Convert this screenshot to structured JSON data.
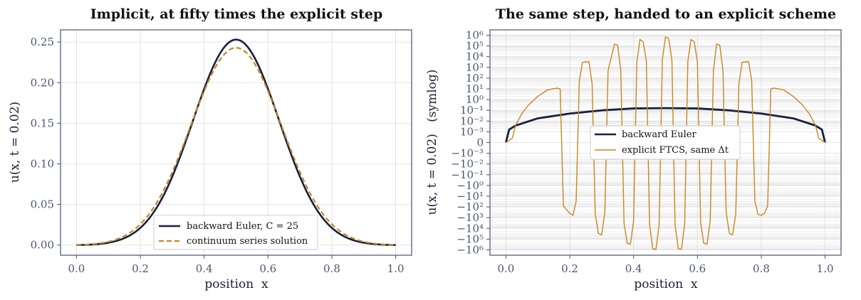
{
  "chart_data": [
    {
      "type": "line",
      "title": "Implicit, at fifty times the explicit step",
      "xlabel": "position  x",
      "ylabel": "u(x, t = 0.02)",
      "xlim": [
        -0.05,
        1.05
      ],
      "ylim": [
        -0.0125,
        0.265
      ],
      "xticks": [
        "0.0",
        "0.2",
        "0.4",
        "0.6",
        "0.8",
        "1.0"
      ],
      "yticks": [
        "0.00",
        "0.05",
        "0.10",
        "0.15",
        "0.20",
        "0.25"
      ],
      "grid": true,
      "legend_position": "bottom-center",
      "series": [
        {
          "name": "backward Euler, C = 25",
          "color": "#172040",
          "style": "solid",
          "model": "gaussian",
          "peak": 0.253,
          "center": 0.5,
          "sigma": 0.135
        },
        {
          "name": "continuum series solution",
          "color": "#c8861e",
          "style": "dashed",
          "model": "gaussian",
          "peak": 0.243,
          "center": 0.5,
          "sigma": 0.142
        }
      ]
    },
    {
      "type": "line",
      "title": "The same step, handed to an explicit scheme",
      "xlabel": "position  x",
      "ylabel": "u(x, t = 0.02)   (symlog)",
      "xlim": [
        -0.05,
        1.05
      ],
      "yscale": "symlog",
      "ylim": [
        -1000000,
        1000000
      ],
      "xticks": [
        "0.0",
        "0.2",
        "0.4",
        "0.6",
        "0.8",
        "1.0"
      ],
      "yticks": [
        "−10⁶",
        "−10⁵",
        "−10⁴",
        "−10³",
        "−10²",
        "−10¹",
        "−10⁰",
        "−10⁻¹",
        "−10⁻²",
        "−10⁻³",
        "0",
        "10⁻³",
        "10⁻²",
        "10⁻¹",
        "10⁰",
        "10¹",
        "10²",
        "10³",
        "10⁴",
        "10⁵",
        "10⁶"
      ],
      "grid": true,
      "legend_position": "center",
      "series": [
        {
          "name": "backward Euler",
          "color": "#172040",
          "style": "solid",
          "x": [
            0,
            0.01,
            0.03,
            0.1,
            0.2,
            0.3,
            0.4,
            0.5,
            0.6,
            0.7,
            0.8,
            0.9,
            0.97,
            0.99,
            1.0
          ],
          "y": [
            0,
            0.0016,
            0.0038,
            0.018,
            0.05,
            0.1,
            0.15,
            0.16,
            0.15,
            0.1,
            0.05,
            0.018,
            0.0038,
            0.0016,
            0
          ]
        },
        {
          "name": "explicit FTCS, same Δt",
          "color": "#c8861e",
          "style": "solid",
          "x": [
            0,
            0.02,
            0.03,
            0.05,
            0.07,
            0.1,
            0.13,
            0.16,
            0.17,
            0.18,
            0.2,
            0.21,
            0.22,
            0.23,
            0.24,
            0.26,
            0.27,
            0.28,
            0.29,
            0.3,
            0.31,
            0.32,
            0.34,
            0.35,
            0.36,
            0.37,
            0.38,
            0.39,
            0.4,
            0.41,
            0.42,
            0.43,
            0.44,
            0.45,
            0.46,
            0.47,
            0.48,
            0.49,
            0.5,
            0.51,
            0.52,
            0.53,
            0.54,
            0.55,
            0.56,
            0.57,
            0.58,
            0.59,
            0.6,
            0.61,
            0.62,
            0.63,
            0.64,
            0.65,
            0.66,
            0.67,
            0.68,
            0.69,
            0.7,
            0.71,
            0.72,
            0.73,
            0.74,
            0.76,
            0.77,
            0.78,
            0.79,
            0.8,
            0.81,
            0.82,
            0.83,
            0.84,
            0.87,
            0.9,
            0.93,
            0.95,
            0.97,
            0.98,
            1.0
          ],
          "y": [
            0,
            0.0004,
            0.004,
            0.05,
            0.3,
            2,
            8,
            12,
            10,
            -80,
            -400,
            -600,
            -30,
            60,
            3000,
            3500,
            30,
            -500,
            -30000,
            -40000,
            -300,
            500,
            150000,
            120000,
            500,
            -3000,
            -250000,
            -300000,
            -2000,
            3000,
            400000,
            250000,
            4000,
            -4000,
            -800000,
            -900000,
            -5000,
            5000,
            700000,
            500000,
            5000,
            -5000,
            -800000,
            -900000,
            -4000,
            4000,
            400000,
            250000,
            3000,
            -3000,
            -250000,
            -300000,
            -2000,
            500,
            150000,
            120000,
            500,
            -300,
            -30000,
            -40000,
            -500,
            30,
            3000,
            3500,
            60,
            -30,
            -500,
            -600,
            -400,
            -80,
            10,
            12,
            8,
            2,
            0.3,
            0.05,
            0.004,
            0.0004,
            0
          ]
        }
      ]
    }
  ]
}
